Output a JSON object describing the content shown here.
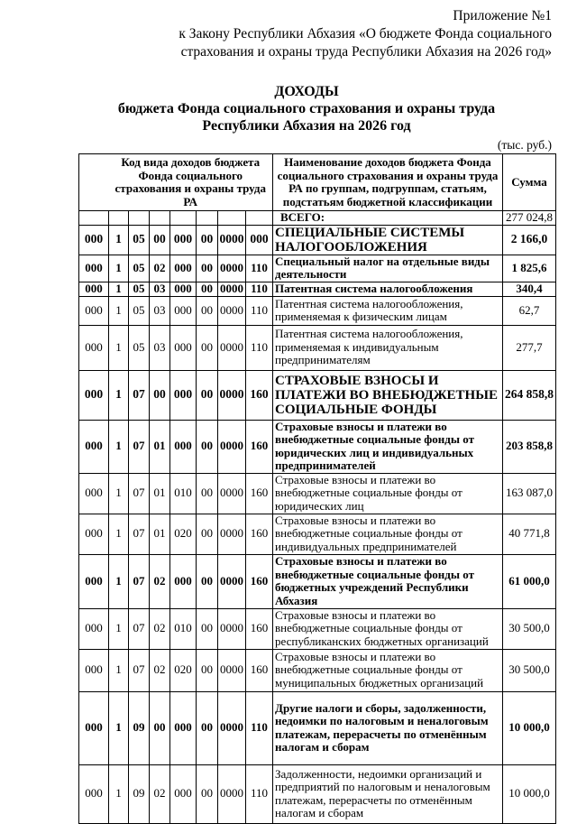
{
  "appendix": {
    "line1": "Приложение №1",
    "line2": "к Закону Республики Абхазия «О бюджете Фонда социального",
    "line3": "страхования и охраны труда Республики Абхазия на 2026 год»"
  },
  "title": {
    "line1": "ДОХОДЫ",
    "line2": "бюджета Фонда социального страхования и охраны труда",
    "line3": "Республики Абхазия на 2026 год"
  },
  "unit": "(тыс. руб.)",
  "table": {
    "headers": {
      "code": "Код вида доходов бюджета Фонда социального страхования и охраны труда РА",
      "name": "Наименование доходов бюджета Фонда социального страхования и охраны труда РА по группам, подгруппам, статьям, подстатьям бюджетной классификации",
      "sum": "Сумма"
    },
    "total": {
      "label": "ВСЕГО:",
      "sum": "277 024,8"
    },
    "rows": [
      {
        "codes": [
          "000",
          "1",
          "05",
          "00",
          "000",
          "00",
          "0000",
          "000"
        ],
        "name": "СПЕЦИАЛЬНЫЕ СИСТЕМЫ НАЛОГООБЛОЖЕНИЯ",
        "sum": "2 166,0"
      },
      {
        "codes": [
          "000",
          "1",
          "05",
          "02",
          "000",
          "00",
          "0000",
          "110"
        ],
        "name": "Специальный налог на отдельные виды деятельности",
        "sum": "1 825,6"
      },
      {
        "codes": [
          "000",
          "1",
          "05",
          "03",
          "000",
          "00",
          "0000",
          "110"
        ],
        "name": "Патентная система налогообложения",
        "sum": "340,4"
      },
      {
        "codes": [
          "000",
          "1",
          "05",
          "03",
          "000",
          "00",
          "0000",
          "110"
        ],
        "name": "Патентная система налогообложения, применяемая к физическим лицам",
        "sum": "62,7"
      },
      {
        "codes": [
          "000",
          "1",
          "05",
          "03",
          "000",
          "00",
          "0000",
          "110"
        ],
        "name": "Патентная система налогообложения, применяемая к индивидуальным предпринимателям",
        "sum": "277,7"
      },
      {
        "codes": [
          "000",
          "1",
          "07",
          "00",
          "000",
          "00",
          "0000",
          "160"
        ],
        "name": "СТРАХОВЫЕ ВЗНОСЫ И ПЛАТЕЖИ ВО ВНЕБЮДЖЕТНЫЕ СОЦИАЛЬНЫЕ ФОНДЫ",
        "sum": "264 858,8"
      },
      {
        "codes": [
          "000",
          "1",
          "07",
          "01",
          "000",
          "00",
          "0000",
          "160"
        ],
        "name": "Страховые взносы и платежи во внебюджетные социальные фонды от юридических лиц и индивидуальных предпринимателей",
        "sum": "203 858,8"
      },
      {
        "codes": [
          "000",
          "1",
          "07",
          "01",
          "010",
          "00",
          "0000",
          "160"
        ],
        "name": "Страховые взносы и платежи во внебюджетные социальные фонды от юридических   лиц",
        "sum": "163 087,0"
      },
      {
        "codes": [
          "000",
          "1",
          "07",
          "01",
          "020",
          "00",
          "0000",
          "160"
        ],
        "name": "Страховые взносы и платежи во внебюджетные социальные фонды от индивидуальных предпринимателей",
        "sum": "40 771,8"
      },
      {
        "codes": [
          "000",
          "1",
          "07",
          "02",
          "000",
          "00",
          "0000",
          "160"
        ],
        "name": "Страховые взносы и платежи во внебюджетные социальные фонды от бюджетных учреждений Республики Абхазия",
        "sum": "61 000,0"
      },
      {
        "codes": [
          "000",
          "1",
          "07",
          "02",
          "010",
          "00",
          "0000",
          "160"
        ],
        "name": "Страховые взносы и платежи во внебюджетные социальные фонды от республиканских бюджетных организаций",
        "sum": "30 500,0"
      },
      {
        "codes": [
          "000",
          "1",
          "07",
          "02",
          "020",
          "00",
          "0000",
          "160"
        ],
        "name": "Страховые взносы и платежи во внебюджетные социальные фонды от муниципальных бюджетных организаций",
        "sum": "30 500,0"
      },
      {
        "codes": [
          "000",
          "1",
          "09",
          "00",
          "000",
          "00",
          "0000",
          "110"
        ],
        "name": "Другие налоги и сборы, задолженности, недоимки по налоговым и неналоговым платежам, перерасчеты по отменённым налогам и сборам",
        "sum": "10 000,0"
      },
      {
        "codes": [
          "000",
          "1",
          "09",
          "02",
          "000",
          "00",
          "0000",
          "110"
        ],
        "name": "Задолженности, недоимки организаций и предприятий по налоговым и неналоговым платежам, перерасчеты по отменённым налогам и сборам",
        "sum": "10 000,0"
      }
    ]
  }
}
